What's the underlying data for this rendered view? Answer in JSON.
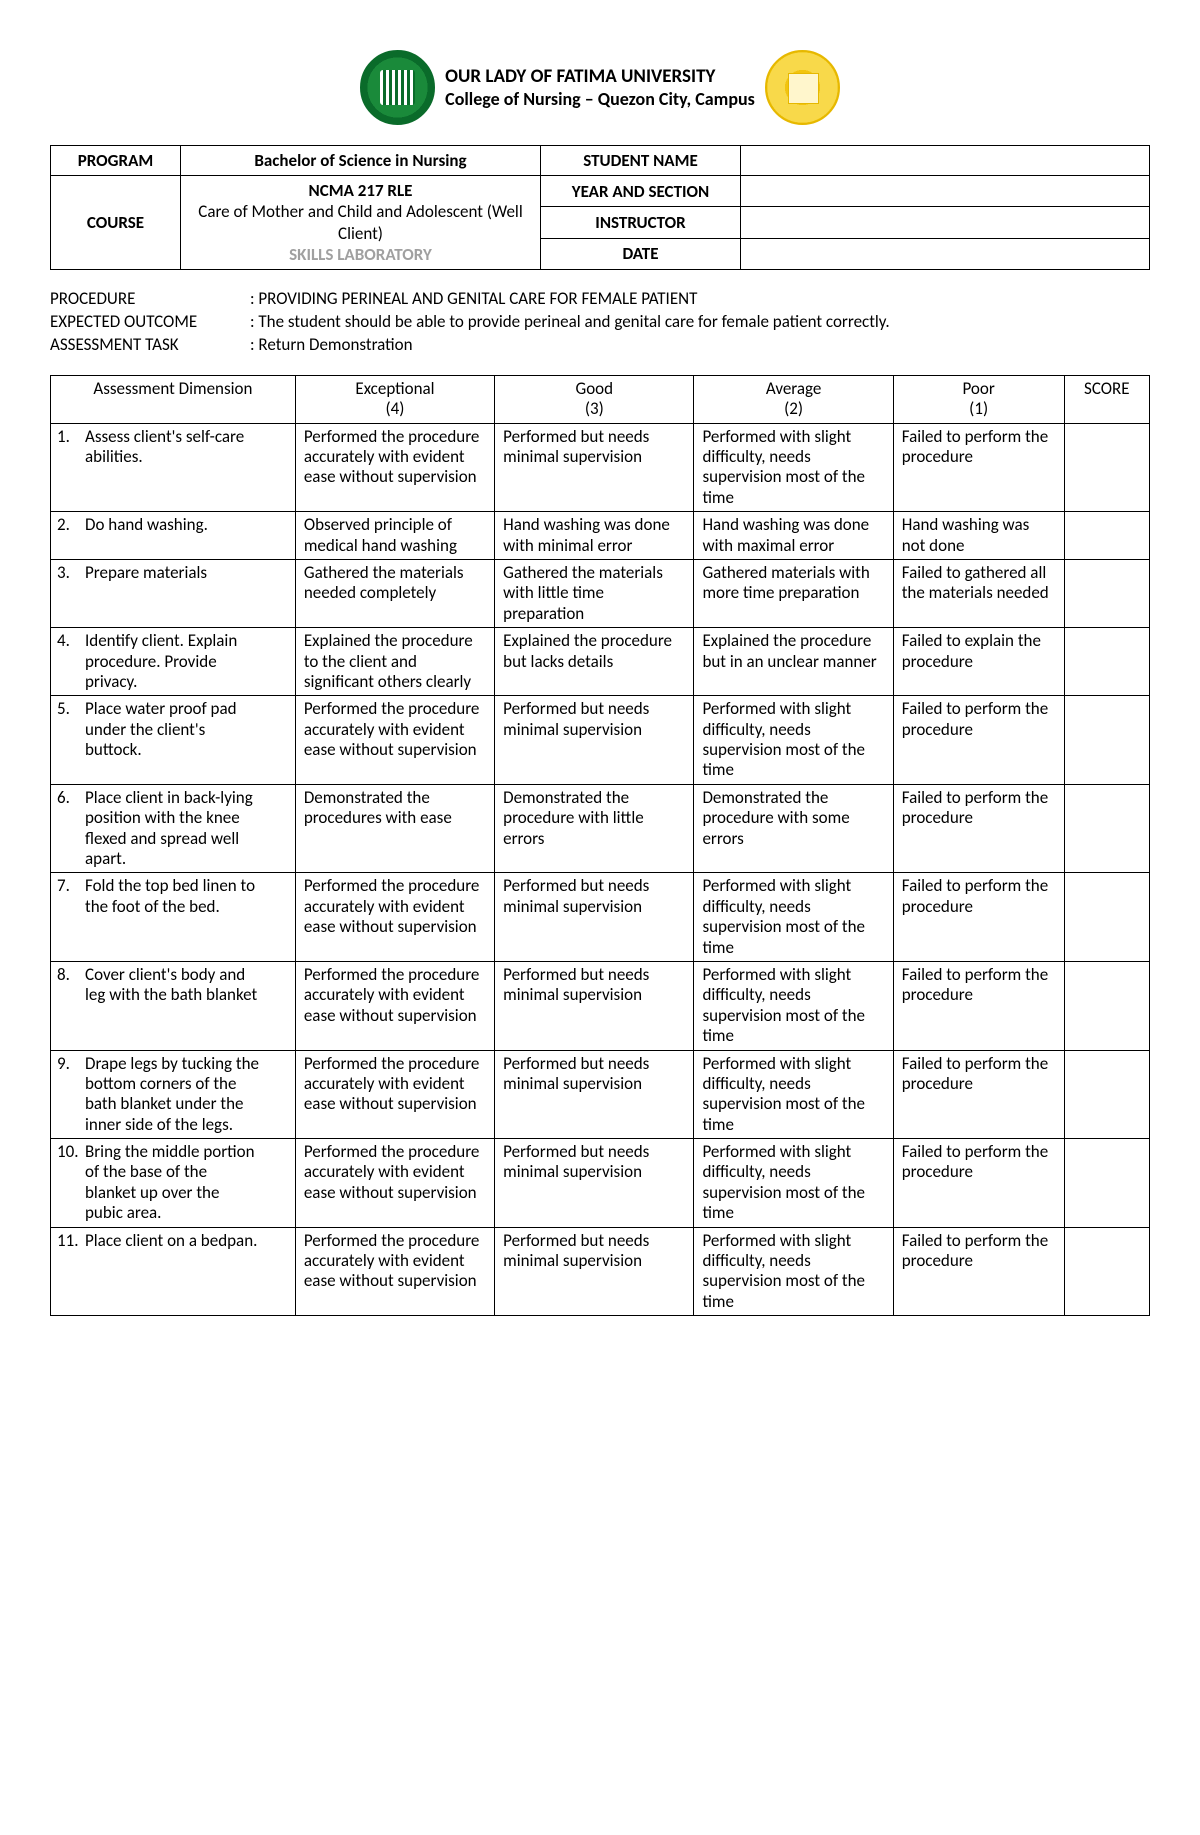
{
  "header": {
    "university": "OUR LADY OF FATIMA UNIVERSITY",
    "college": "College of Nursing – Quezon City, Campus"
  },
  "info": {
    "program_label": "PROGRAM",
    "program_value": "Bachelor of Science in Nursing",
    "course_label": "COURSE",
    "course_code": "NCMA 217 RLE",
    "course_title": "Care of Mother and Child and Adolescent (Well Client)",
    "course_lab": "SKILLS LABORATORY",
    "student_name_label": "STUDENT NAME",
    "student_name_value": "",
    "year_section_label": "YEAR AND SECTION",
    "year_section_value": "",
    "instructor_label": "INSTRUCTOR",
    "instructor_value": "",
    "date_label": "DATE",
    "date_value": ""
  },
  "meta": {
    "procedure_label": "PROCEDURE",
    "procedure_value": ": PROVIDING PERINEAL AND GENITAL CARE FOR FEMALE PATIENT",
    "outcome_label": "EXPECTED OUTCOME",
    "outcome_value": ": The student should be able to provide perineal and genital care for female patient correctly.",
    "task_label": "ASSESSMENT TASK",
    "task_value": ": Return Demonstration"
  },
  "rubric_header": {
    "dimension": "Assessment Dimension",
    "exceptional": "Exceptional",
    "exceptional_pts": "(4)",
    "good": "Good",
    "good_pts": "(3)",
    "average": "Average",
    "average_pts": "(2)",
    "poor": "Poor",
    "poor_pts": "(1)",
    "score": "SCORE"
  },
  "rows": [
    {
      "num": "1.",
      "dim": "Assess client's self-care abilities.",
      "c4": "Performed the procedure accurately with evident ease without supervision",
      "c3": "Performed but needs minimal supervision",
      "c2": "Performed with slight difficulty, needs supervision most of the time",
      "c1": "Failed to perform the procedure"
    },
    {
      "num": "2.",
      "dim": "Do hand washing.",
      "c4": "Observed principle of medical hand washing",
      "c3": "Hand washing was done with minimal error",
      "c2": "Hand washing was done with maximal error",
      "c1": "Hand washing was not done"
    },
    {
      "num": "3.",
      "dim": "Prepare materials",
      "c4": "Gathered the materials needed completely",
      "c3": "Gathered the materials with little time preparation",
      "c2": "Gathered materials with more time preparation",
      "c1": "Failed to gathered all the materials needed"
    },
    {
      "num": "4.",
      "dim": "Identify client. Explain procedure. Provide privacy.",
      "c4": "Explained the procedure to the client and significant others clearly",
      "c3": "Explained the procedure but lacks details",
      "c2": "Explained the procedure but in an unclear manner",
      "c1": "Failed to explain the procedure"
    },
    {
      "num": "5.",
      "dim": "Place water proof pad under the client's buttock.",
      "c4": "Performed the procedure accurately with evident ease without supervision",
      "c3": "Performed but needs minimal supervision",
      "c2": "Performed with slight difficulty, needs supervision most of the time",
      "c1": "Failed to perform the procedure"
    },
    {
      "num": "6.",
      "dim": "Place client in back-lying position with the knee flexed and spread well apart.",
      "c4": "Demonstrated the procedures with ease",
      "c3": "Demonstrated the procedure with little errors",
      "c2": "Demonstrated the procedure with some errors",
      "c1": "Failed to perform the procedure"
    },
    {
      "num": "7.",
      "dim": "Fold the top bed linen to the foot of the bed.",
      "c4": "Performed the procedure accurately with evident ease without supervision",
      "c3": "Performed but needs minimal supervision",
      "c2": "Performed with slight difficulty, needs supervision most of the time",
      "c1": "Failed to perform the procedure"
    },
    {
      "num": "8.",
      "dim": "Cover client's body and leg with the bath blanket",
      "c4": "Performed the procedure accurately with evident ease without supervision",
      "c3": "Performed but needs minimal supervision",
      "c2": "Performed with slight difficulty, needs supervision most of the time",
      "c1": "Failed to perform the procedure"
    },
    {
      "num": "9.",
      "dim": "Drape legs by tucking the bottom corners of the bath blanket under the inner side of the legs.",
      "c4": "Performed the procedure accurately with evident ease without supervision",
      "c3": "Performed but needs minimal supervision",
      "c2": "Performed with slight difficulty, needs supervision most of the time",
      "c1": "Failed to perform the procedure"
    },
    {
      "num": "10.",
      "dim": "Bring the middle portion of the base of the blanket up over the pubic area.",
      "c4": "Performed the procedure accurately with evident ease without supervision",
      "c3": "Performed but needs minimal supervision",
      "c2": "Performed with slight difficulty, needs supervision most of the time",
      "c1": "Failed to perform the procedure"
    },
    {
      "num": "11.",
      "dim": "Place client on a bedpan.",
      "c4": "Performed the procedure accurately with evident ease without supervision",
      "c3": "Performed but needs minimal supervision",
      "c2": "Performed with slight difficulty, needs supervision most of the time",
      "c1": "Failed to perform the procedure"
    }
  ]
}
